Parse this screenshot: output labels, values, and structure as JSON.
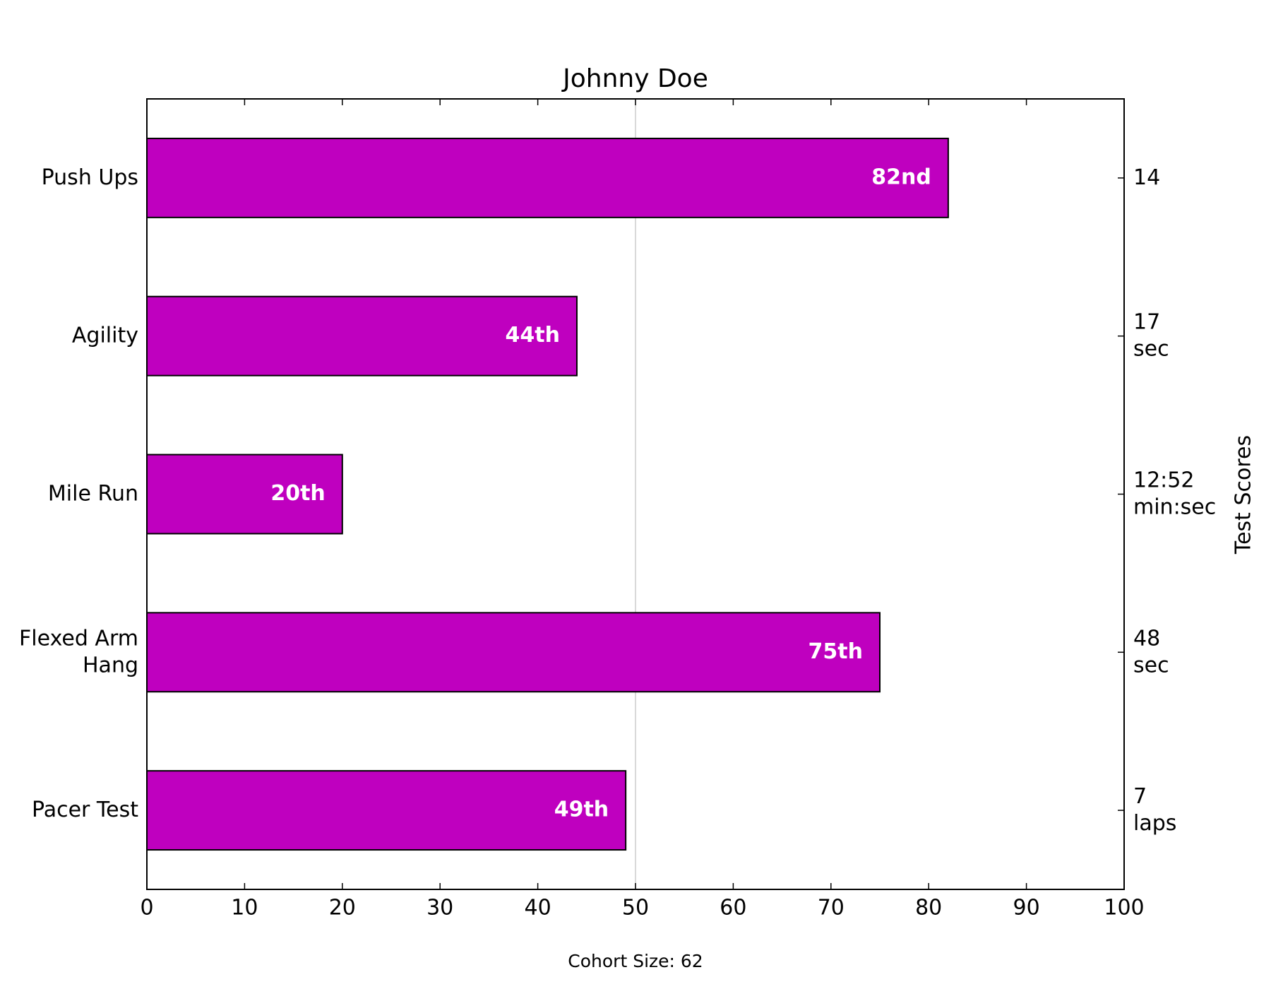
{
  "chart_data": {
    "type": "barh",
    "title": "Johnny Doe",
    "categories": [
      "Push Ups",
      "Agility",
      "Mile Run",
      "Flexed Arm\nHang",
      "Pacer Test"
    ],
    "values": [
      82,
      44,
      20,
      75,
      49
    ],
    "value_labels": [
      "82nd",
      "44th",
      "20th",
      "75th",
      "49th"
    ],
    "color": "#bf00bf",
    "y2_categories": [
      "14",
      "17\nsec",
      "12:52\nmin:sec",
      "48\nsec",
      "7\nlaps"
    ],
    "y2label": "Test Scores",
    "xlim": [
      0,
      100
    ],
    "xticks": [
      0,
      10,
      20,
      30,
      40,
      50,
      60,
      70,
      80,
      90,
      100
    ],
    "reference_line": 50,
    "footnote": "Cohort Size: 62"
  }
}
